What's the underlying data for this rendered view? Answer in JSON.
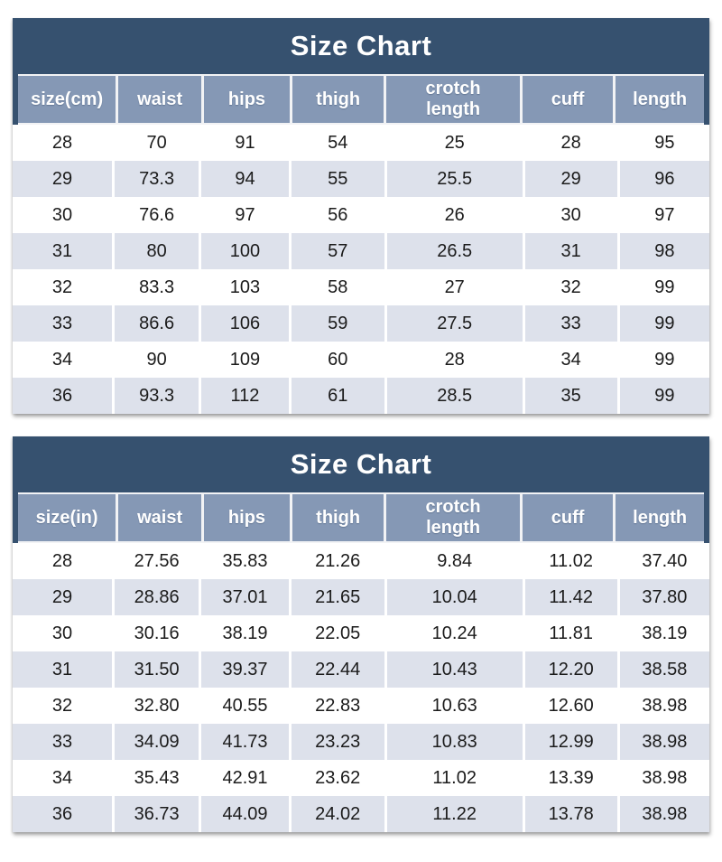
{
  "style": {
    "title_bar_color": "#36516F",
    "header_band_color": "#8598B5",
    "stripe_row_color": "#DDE1EB",
    "header_text_color": "#FFFFFF",
    "body_text_color": "#1B1B1B"
  },
  "chart_data": [
    {
      "type": "table",
      "title": "Size Chart",
      "unit": "cm",
      "columns": [
        "size(cm)",
        "waist",
        "hips",
        "thigh",
        "crotch length",
        "cuff",
        "length"
      ],
      "rows": [
        [
          "28",
          "70",
          "91",
          "54",
          "25",
          "28",
          "95"
        ],
        [
          "29",
          "73.3",
          "94",
          "55",
          "25.5",
          "29",
          "96"
        ],
        [
          "30",
          "76.6",
          "97",
          "56",
          "26",
          "30",
          "97"
        ],
        [
          "31",
          "80",
          "100",
          "57",
          "26.5",
          "31",
          "98"
        ],
        [
          "32",
          "83.3",
          "103",
          "58",
          "27",
          "32",
          "99"
        ],
        [
          "33",
          "86.6",
          "106",
          "59",
          "27.5",
          "33",
          "99"
        ],
        [
          "34",
          "90",
          "109",
          "60",
          "28",
          "34",
          "99"
        ],
        [
          "36",
          "93.3",
          "112",
          "61",
          "28.5",
          "35",
          "99"
        ]
      ]
    },
    {
      "type": "table",
      "title": "Size Chart",
      "unit": "in",
      "columns": [
        "size(in)",
        "waist",
        "hips",
        "thigh",
        "crotch length",
        "cuff",
        "length"
      ],
      "rows": [
        [
          "28",
          "27.56",
          "35.83",
          "21.26",
          "9.84",
          "11.02",
          "37.40"
        ],
        [
          "29",
          "28.86",
          "37.01",
          "21.65",
          "10.04",
          "11.42",
          "37.80"
        ],
        [
          "30",
          "30.16",
          "38.19",
          "22.05",
          "10.24",
          "11.81",
          "38.19"
        ],
        [
          "31",
          "31.50",
          "39.37",
          "22.44",
          "10.43",
          "12.20",
          "38.58"
        ],
        [
          "32",
          "32.80",
          "40.55",
          "22.83",
          "10.63",
          "12.60",
          "38.98"
        ],
        [
          "33",
          "34.09",
          "41.73",
          "23.23",
          "10.83",
          "12.99",
          "38.98"
        ],
        [
          "34",
          "35.43",
          "42.91",
          "23.62",
          "11.02",
          "13.39",
          "38.98"
        ],
        [
          "36",
          "36.73",
          "44.09",
          "24.02",
          "11.22",
          "13.78",
          "38.98"
        ]
      ]
    }
  ]
}
